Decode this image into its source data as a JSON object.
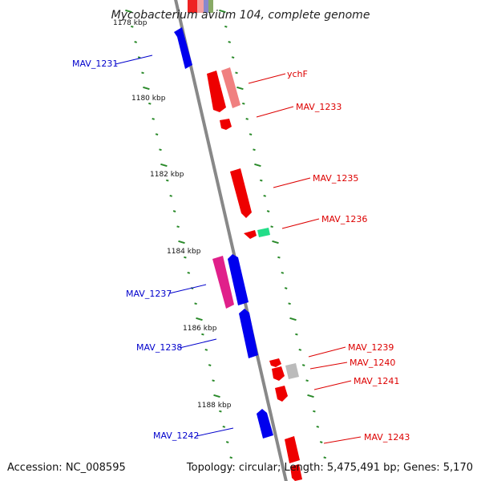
{
  "title": "Mycobacterium avium 104, complete genome",
  "accession_label": "Accession: NC_008595",
  "topology_label": "Topology: circular; Length: 5,475,491 bp; Genes: 5,170",
  "colors": {
    "backbone": "#888888",
    "tick": "#2a8a2a",
    "forward_gene": "#0000ee",
    "reverse_gene": "#ee0000",
    "label_forward": "#0000cc",
    "label_reverse": "#dd0000"
  },
  "kbp_labels": [
    "1178 kbp",
    "1180 kbp",
    "1182 kbp",
    "1184 kbp",
    "1186 kbp",
    "1188 kbp"
  ],
  "gene_labels": {
    "mav_1231": "MAV_1231",
    "ychf": "ychF",
    "mav_1233": "MAV_1233",
    "mav_1235": "MAV_1235",
    "mav_1236": "MAV_1236",
    "mav_1237": "MAV_1237",
    "mav_1238": "MAV_1238",
    "mav_1239": "MAV_1239",
    "mav_1240": "MAV_1240",
    "mav_1241": "MAV_1241",
    "mav_1242": "MAV_1242",
    "mav_1243": "MAV_1243"
  }
}
